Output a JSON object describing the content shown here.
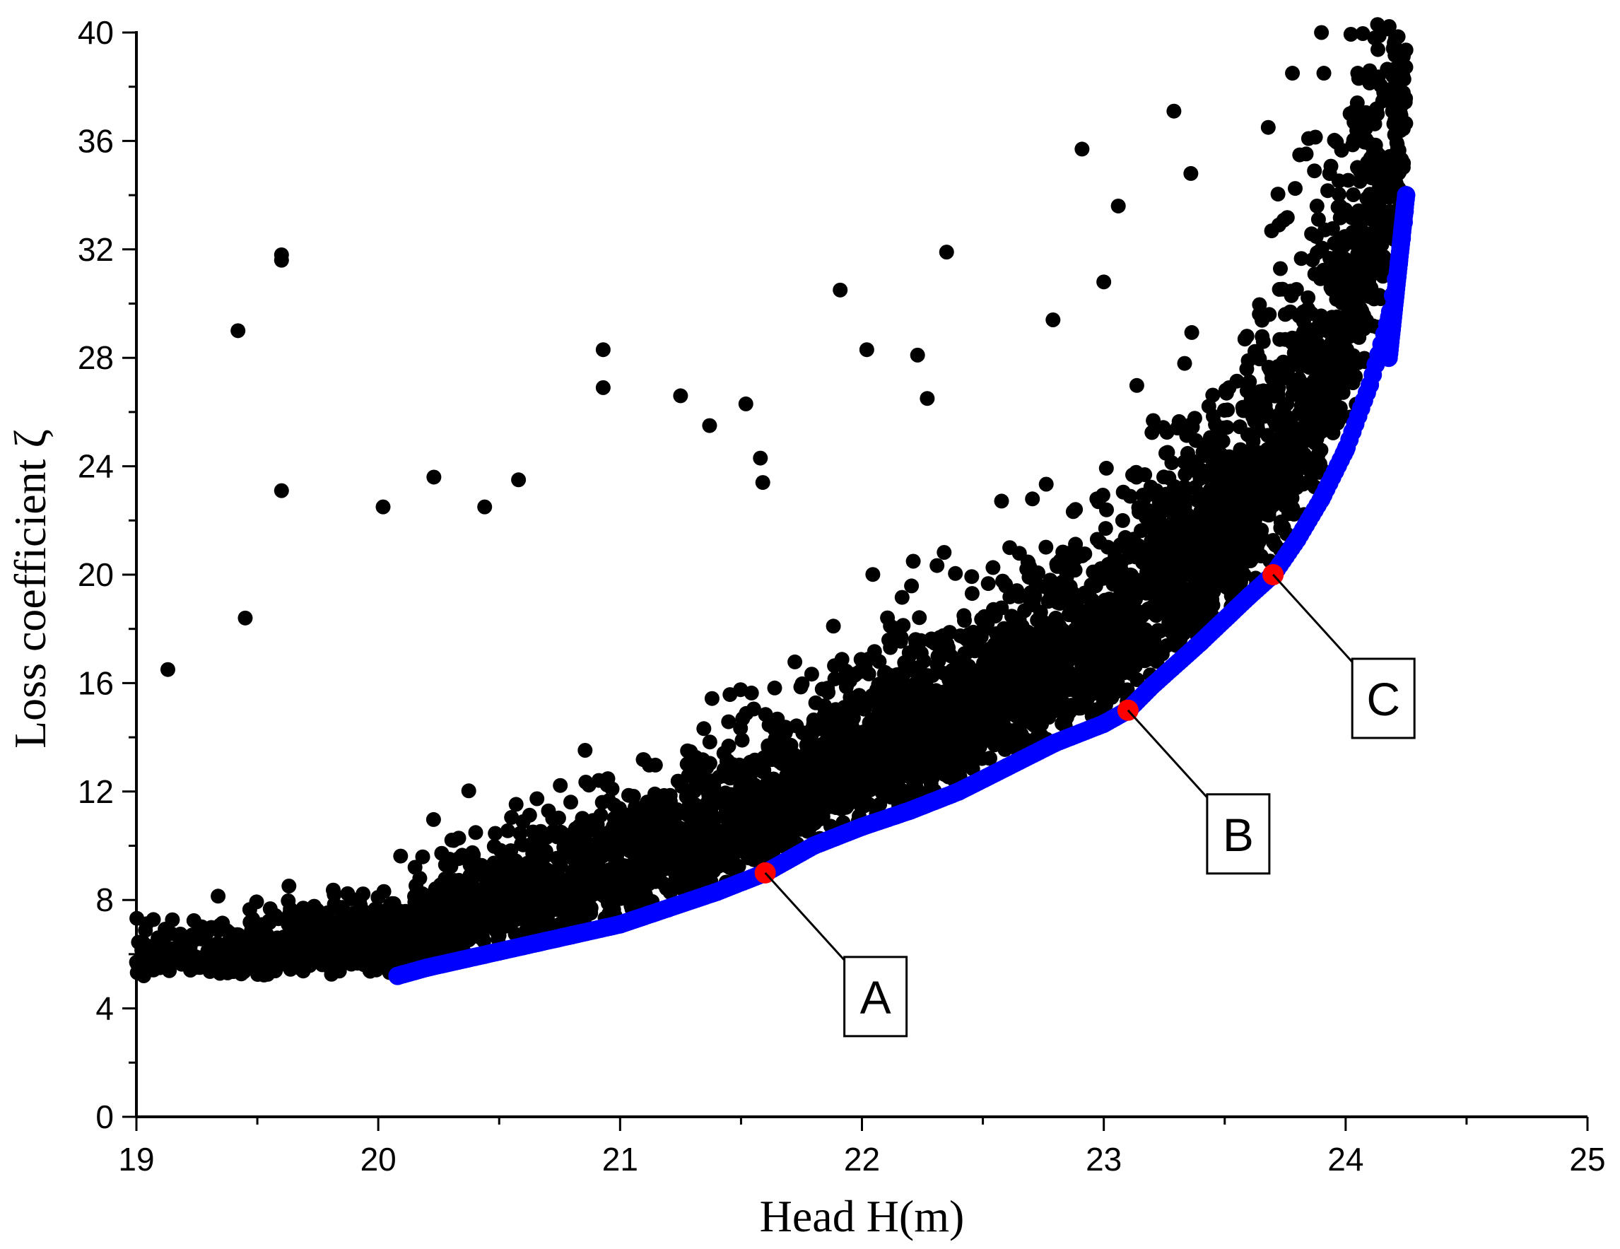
{
  "chart_data": {
    "type": "scatter",
    "xlabel": "Head H(m)",
    "ylabel": "Loss coefficient ζ",
    "xlim": [
      19,
      25
    ],
    "ylim": [
      0,
      40
    ],
    "xticks": [
      "19",
      "20",
      "21",
      "22",
      "23",
      "24",
      "25"
    ],
    "yticks": [
      "0",
      "4",
      "8",
      "12",
      "16",
      "20",
      "24",
      "28",
      "32",
      "36",
      "40"
    ],
    "grid": false,
    "legend": "none",
    "colors": {
      "cloud": "#000000",
      "front": "#0000ff",
      "selected": "#ff0000"
    },
    "series": [
      {
        "role": "cloud",
        "color": "#000000",
        "description_count": 5000,
        "points": [
          [
            19.6,
            31.8
          ],
          [
            19.6,
            31.6
          ],
          [
            19.42,
            29.0
          ],
          [
            19.6,
            23.1
          ],
          [
            19.45,
            18.4
          ],
          [
            19.13,
            16.5
          ],
          [
            20.02,
            22.5
          ],
          [
            20.23,
            23.6
          ],
          [
            20.58,
            23.5
          ],
          [
            20.44,
            22.5
          ],
          [
            20.93,
            28.3
          ],
          [
            20.93,
            26.9
          ],
          [
            21.37,
            25.5
          ],
          [
            21.52,
            26.3
          ],
          [
            21.25,
            26.6
          ],
          [
            21.91,
            30.5
          ],
          [
            22.02,
            28.3
          ],
          [
            22.23,
            28.1
          ],
          [
            22.27,
            26.5
          ],
          [
            22.35,
            31.9
          ],
          [
            22.91,
            35.7
          ],
          [
            23.06,
            33.6
          ],
          [
            23.29,
            37.1
          ],
          [
            23.36,
            34.8
          ],
          [
            23.9,
            40.0
          ],
          [
            24.12,
            39.8
          ],
          [
            23.91,
            38.5
          ],
          [
            23.78,
            38.5
          ],
          [
            24.05,
            38.5
          ],
          [
            23.68,
            36.5
          ],
          [
            23.0,
            30.8
          ],
          [
            22.79,
            29.4
          ],
          [
            21.58,
            24.3
          ],
          [
            21.59,
            23.4
          ]
        ]
      },
      {
        "role": "front",
        "color": "#0000ff",
        "points": [
          [
            20.08,
            5.2
          ],
          [
            20.2,
            5.5
          ],
          [
            20.4,
            5.9
          ],
          [
            20.6,
            6.3
          ],
          [
            20.8,
            6.7
          ],
          [
            21.0,
            7.1
          ],
          [
            21.2,
            7.7
          ],
          [
            21.4,
            8.3
          ],
          [
            21.6,
            9.0
          ],
          [
            21.8,
            10.0
          ],
          [
            22.0,
            10.7
          ],
          [
            22.2,
            11.3
          ],
          [
            22.4,
            12.0
          ],
          [
            22.6,
            12.9
          ],
          [
            22.8,
            13.8
          ],
          [
            23.0,
            14.5
          ],
          [
            23.1,
            15.0
          ],
          [
            23.2,
            15.9
          ],
          [
            23.4,
            17.5
          ],
          [
            23.6,
            19.2
          ],
          [
            23.7,
            20.0
          ],
          [
            23.8,
            21.3
          ],
          [
            23.9,
            22.8
          ],
          [
            24.0,
            24.6
          ],
          [
            24.1,
            27.0
          ],
          [
            24.18,
            29.5
          ],
          [
            24.22,
            31.5
          ],
          [
            24.24,
            33.0
          ],
          [
            24.25,
            34.0
          ]
        ]
      },
      {
        "role": "selected",
        "color": "#ff0000",
        "points": [
          [
            21.6,
            9.0
          ],
          [
            23.1,
            15.0
          ],
          [
            23.7,
            20.0
          ]
        ]
      }
    ],
    "annotations": [
      {
        "label": "A",
        "x": 21.6,
        "y": 9.0
      },
      {
        "label": "B",
        "x": 23.1,
        "y": 15.0
      },
      {
        "label": "C",
        "x": 23.7,
        "y": 20.0
      }
    ]
  }
}
